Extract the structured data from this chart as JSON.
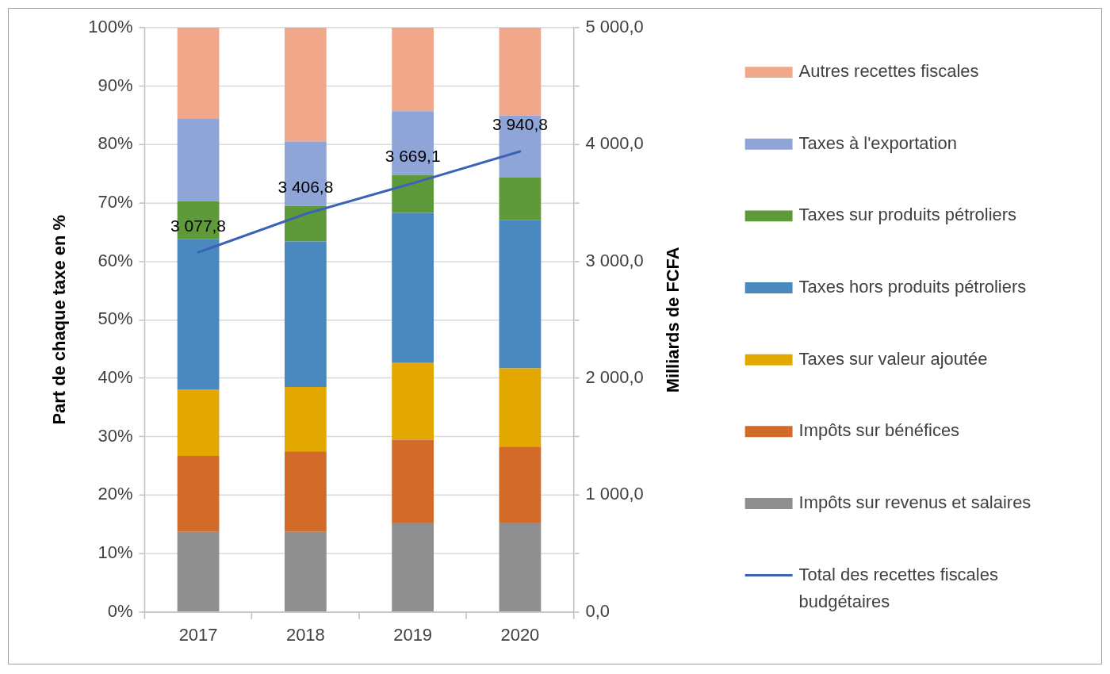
{
  "chart_data": {
    "type": "bar",
    "stacked": true,
    "categories": [
      "2017",
      "2018",
      "2019",
      "2020"
    ],
    "ylabel": "Part de chaque taxe en %",
    "y2label": "Milliards de FCFA",
    "ylim": [
      0,
      100
    ],
    "yticks": [
      {
        "value": 0,
        "label": "0%"
      },
      {
        "value": 10,
        "label": "10%"
      },
      {
        "value": 20,
        "label": "20%"
      },
      {
        "value": 30,
        "label": "30%"
      },
      {
        "value": 40,
        "label": "40%"
      },
      {
        "value": 50,
        "label": "50%"
      },
      {
        "value": 60,
        "label": "60%"
      },
      {
        "value": 70,
        "label": "70%"
      },
      {
        "value": 80,
        "label": "80%"
      },
      {
        "value": 90,
        "label": "90%"
      },
      {
        "value": 100,
        "label": "100%"
      }
    ],
    "y2lim": [
      0,
      5000
    ],
    "y2ticks": [
      {
        "value": 0,
        "label": "0,0"
      },
      {
        "value": 500,
        "label": null
      },
      {
        "value": 1000,
        "label": "1 000,0"
      },
      {
        "value": 1500,
        "label": null
      },
      {
        "value": 2000,
        "label": "2 000,0"
      },
      {
        "value": 2500,
        "label": null
      },
      {
        "value": 3000,
        "label": "3 000,0"
      },
      {
        "value": 3500,
        "label": null
      },
      {
        "value": 4000,
        "label": "4 000,0"
      },
      {
        "value": 4500,
        "label": null
      },
      {
        "value": 5000,
        "label": "5 000,0"
      }
    ],
    "grid": "y",
    "legend": "right",
    "series": [
      {
        "name": "Impôts sur revenus et salaires",
        "color": "#8f8f8f",
        "values": [
          13.7,
          13.7,
          15.3,
          15.3
        ]
      },
      {
        "name": "Impôts sur bénéfices",
        "color": "#d26b2a",
        "values": [
          13.0,
          13.8,
          14.2,
          13.0
        ]
      },
      {
        "name": "Taxes sur valeur ajoutée",
        "color": "#e2a800",
        "values": [
          11.4,
          11.0,
          13.1,
          13.4
        ]
      },
      {
        "name": "Taxes hors produits pétroliers",
        "color": "#4a89c0",
        "values": [
          25.7,
          24.9,
          25.7,
          25.4
        ]
      },
      {
        "name": "Taxes sur produits pétroliers",
        "color": "#5f9a3a",
        "values": [
          6.5,
          6.1,
          6.5,
          7.3
        ]
      },
      {
        "name": "Taxes à l'exportation",
        "color": "#8fa5d8",
        "values": [
          14.2,
          11.0,
          10.9,
          10.6
        ]
      },
      {
        "name": "Autres recettes fiscales",
        "color": "#f1a78a",
        "values": [
          15.5,
          19.5,
          14.3,
          15.0
        ]
      },
      {
        "name": "Total des recettes fiscales budgétaires",
        "type": "line",
        "axis": "y2",
        "color": "#3a62b7",
        "values": [
          3077.8,
          3406.8,
          3669.1,
          3940.8
        ],
        "value_labels": [
          "3 077,8",
          "3 406,8",
          "3 669,1",
          "3 940,8"
        ]
      }
    ]
  }
}
